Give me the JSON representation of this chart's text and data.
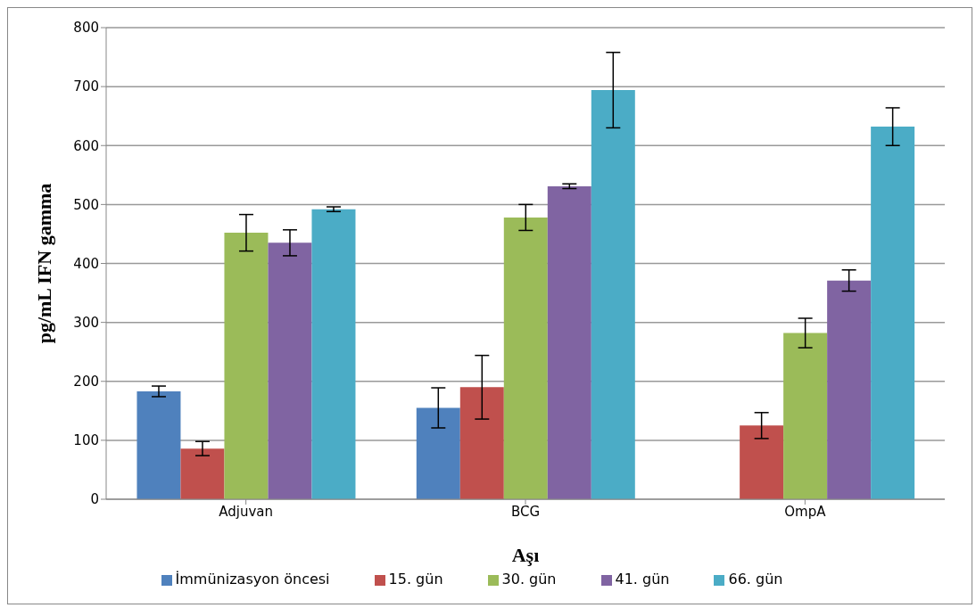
{
  "chart_data": {
    "type": "bar",
    "xlabel": "Aşı",
    "ylabel": "pg/mL IFN gamma",
    "categories": [
      "Adjuvan",
      "BCG",
      "OmpA"
    ],
    "series": [
      {
        "name": "İmmünizasyon öncesi",
        "color": "#4f81bd",
        "values": [
          183,
          155,
          null
        ],
        "errors": [
          9,
          34,
          null
        ]
      },
      {
        "name": "15. gün",
        "color": "#c0504d",
        "values": [
          86,
          190,
          125
        ],
        "errors": [
          12,
          54,
          22
        ]
      },
      {
        "name": "30. gün",
        "color": "#9bbb59",
        "values": [
          452,
          478,
          282
        ],
        "errors": [
          31,
          22,
          25
        ]
      },
      {
        "name": "41. gün",
        "color": "#8064a2",
        "values": [
          435,
          531,
          371
        ],
        "errors": [
          22,
          4,
          18
        ]
      },
      {
        "name": "66. gün",
        "color": "#4bacc6",
        "values": [
          492,
          694,
          632
        ],
        "errors": [
          4,
          64,
          32
        ]
      }
    ],
    "ylim": [
      0,
      800
    ],
    "yticks": [
      0,
      100,
      200,
      300,
      400,
      500,
      600,
      700,
      800
    ],
    "grid": "y",
    "legend": "bottom"
  }
}
